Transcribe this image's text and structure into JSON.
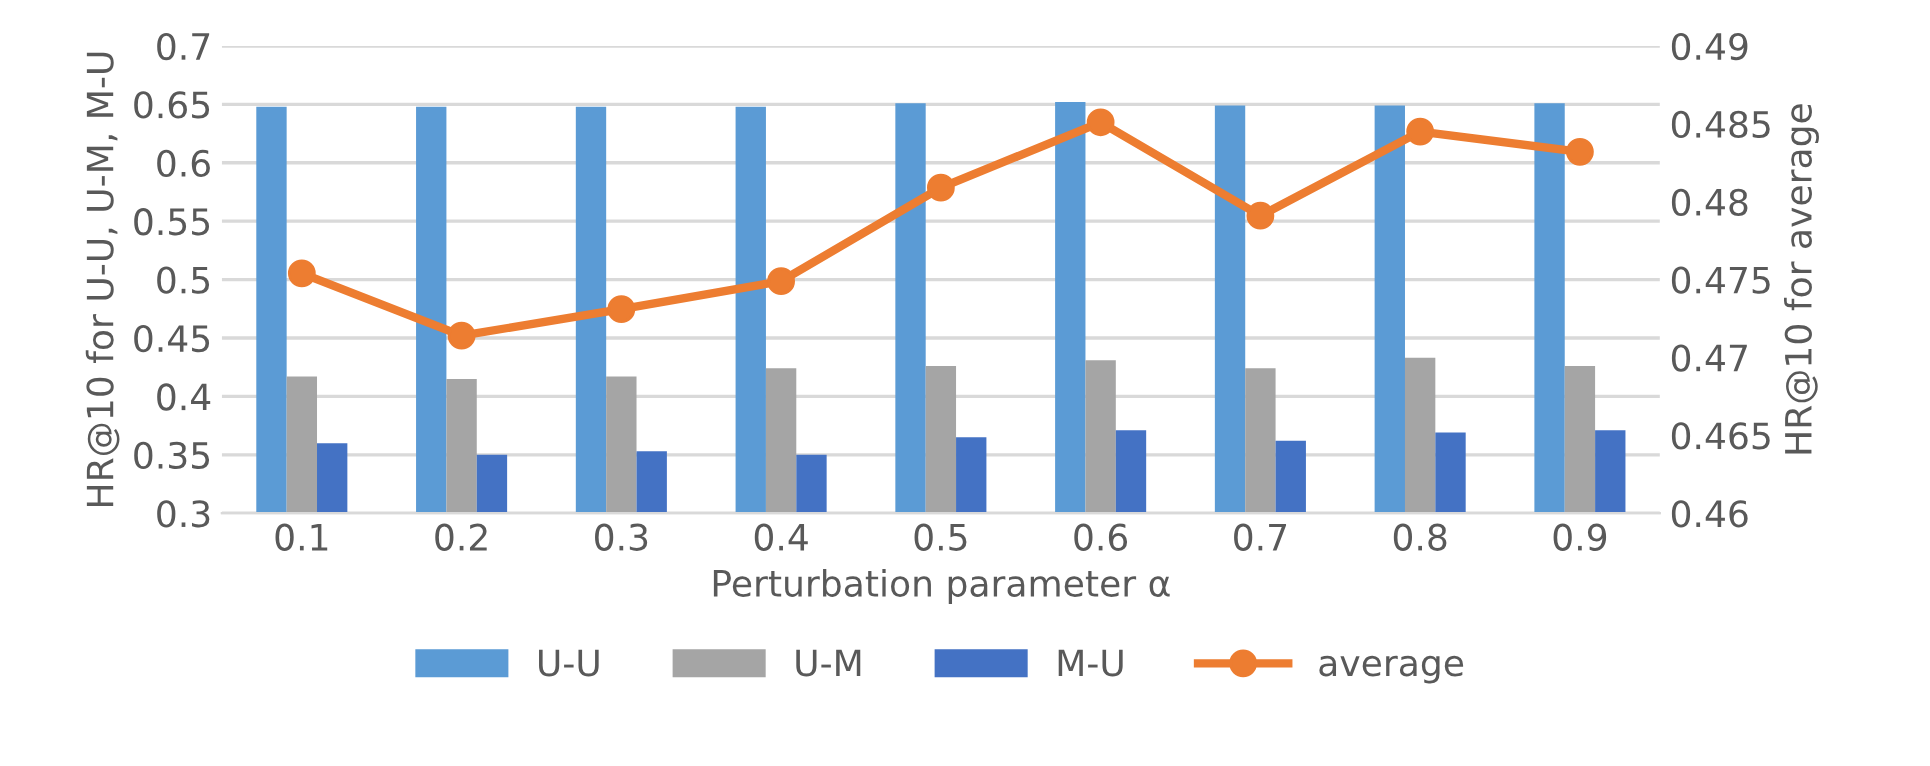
{
  "chart_data": {
    "type": "bar",
    "xlabel": "Perturbation parameter α",
    "ylabel": "HR@10 for U-U, U-M, M-U",
    "y2label": "HR@10 for average",
    "categories": [
      "0.1",
      "0.2",
      "0.3",
      "0.4",
      "0.5",
      "0.6",
      "0.7",
      "0.8",
      "0.9"
    ],
    "series": [
      {
        "name": "U-U",
        "color": "#5b9bd5",
        "values": [
          0.648,
          0.648,
          0.648,
          0.648,
          0.651,
          0.652,
          0.649,
          0.649,
          0.651
        ]
      },
      {
        "name": "U-M",
        "color": "#a5a5a5",
        "values": [
          0.417,
          0.415,
          0.417,
          0.424,
          0.426,
          0.431,
          0.424,
          0.433,
          0.426
        ]
      },
      {
        "name": "M-U",
        "color": "#4472c4",
        "values": [
          0.36,
          0.35,
          0.353,
          0.35,
          0.365,
          0.371,
          0.362,
          0.369,
          0.371
        ]
      },
      {
        "name": "average",
        "color": "#ed7d31",
        "type": "line",
        "axis": "y2",
        "marker": "circle",
        "values": [
          0.4754,
          0.4714,
          0.4731,
          0.4749,
          0.4809,
          0.4851,
          0.4791,
          0.4845,
          0.4832
        ]
      }
    ],
    "ylim": [
      0.3,
      0.7
    ],
    "yticks": [
      0.3,
      0.35,
      0.4,
      0.45,
      0.5,
      0.55,
      0.6,
      0.65,
      0.7
    ],
    "y2lim": [
      0.46,
      0.49
    ],
    "y2ticks": [
      0.46,
      0.465,
      0.47,
      0.475,
      0.48,
      0.485,
      0.49
    ],
    "grid": "y",
    "legend": "bottom"
  }
}
